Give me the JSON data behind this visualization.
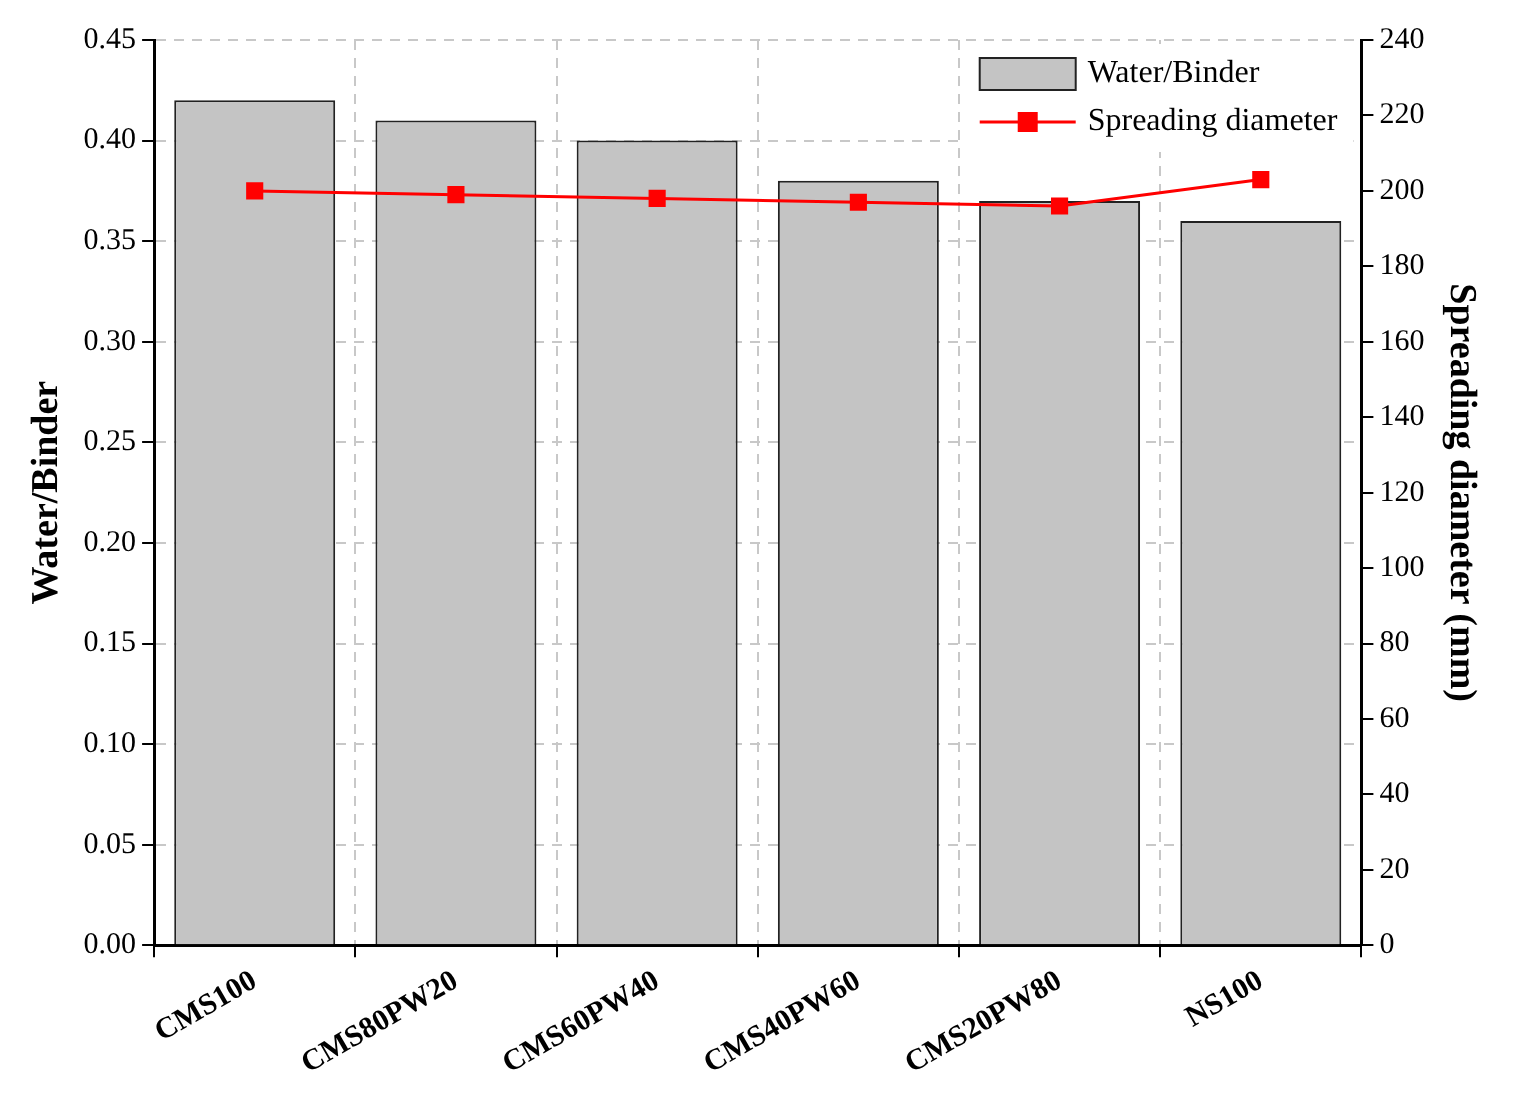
{
  "chart_data": {
    "type": "bar",
    "categories": [
      "CMS100",
      "CMS80PW20",
      "CMS60PW40",
      "CMS40PW60",
      "CMS20PW80",
      "NS100"
    ],
    "series": [
      {
        "name": "Water/Binder",
        "color": "#c4c4c4",
        "values": [
          0.42,
          0.41,
          0.4,
          0.38,
          0.37,
          0.36
        ]
      },
      {
        "name": "Spreading diameter",
        "type": "line",
        "axis": "y2",
        "color": "#ff0000",
        "marker": "square",
        "values": [
          200,
          199,
          198,
          197,
          196,
          203
        ]
      }
    ],
    "ylabel": "Water/Binder",
    "y2label": "Spreading diameter (mm)",
    "ylim": [
      0,
      0.45
    ],
    "yticks": [
      {
        "value": 0,
        "label": "0.00"
      },
      {
        "value": 0.05,
        "label": "0.05"
      },
      {
        "value": 0.1,
        "label": "0.10"
      },
      {
        "value": 0.15,
        "label": "0.15"
      },
      {
        "value": 0.2,
        "label": "0.20"
      },
      {
        "value": 0.25,
        "label": "0.25"
      },
      {
        "value": 0.3,
        "label": "0.30"
      },
      {
        "value": 0.35,
        "label": "0.35"
      },
      {
        "value": 0.4,
        "label": "0.40"
      },
      {
        "value": 0.45,
        "label": "0.45"
      }
    ],
    "y2lim": [
      0,
      240
    ],
    "y2ticks": [
      0,
      20,
      40,
      60,
      80,
      100,
      120,
      140,
      160,
      180,
      200,
      220,
      240
    ],
    "grid": true,
    "legend": "top right"
  }
}
